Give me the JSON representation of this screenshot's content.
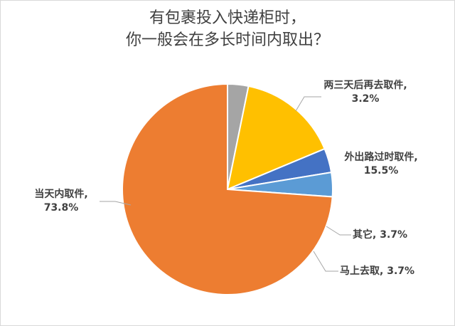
{
  "chart_data": {
    "type": "pie",
    "title": [
      "有包裹投入快递柜时，",
      "你一般会在多长时间内取出？"
    ],
    "slices": [
      {
        "label": "两三天后再去取件,",
        "value": 3.2,
        "value_label": "3.2%",
        "color": "#a5a5a5"
      },
      {
        "label": "外出路过时取件,",
        "value": 15.5,
        "value_label": "15.5%",
        "color": "#ffc000"
      },
      {
        "label": "其它,",
        "value": 3.7,
        "value_label": "3.7%",
        "color": "#4472c4"
      },
      {
        "label": "马上去取,",
        "value": 3.7,
        "value_label": "3.7%",
        "color": "#5b9bd5"
      },
      {
        "label": "当天内取件,",
        "value": 73.8,
        "value_label": "73.8%",
        "color": "#ed7d31"
      }
    ],
    "leader_line_color": "#a6a6a6"
  }
}
